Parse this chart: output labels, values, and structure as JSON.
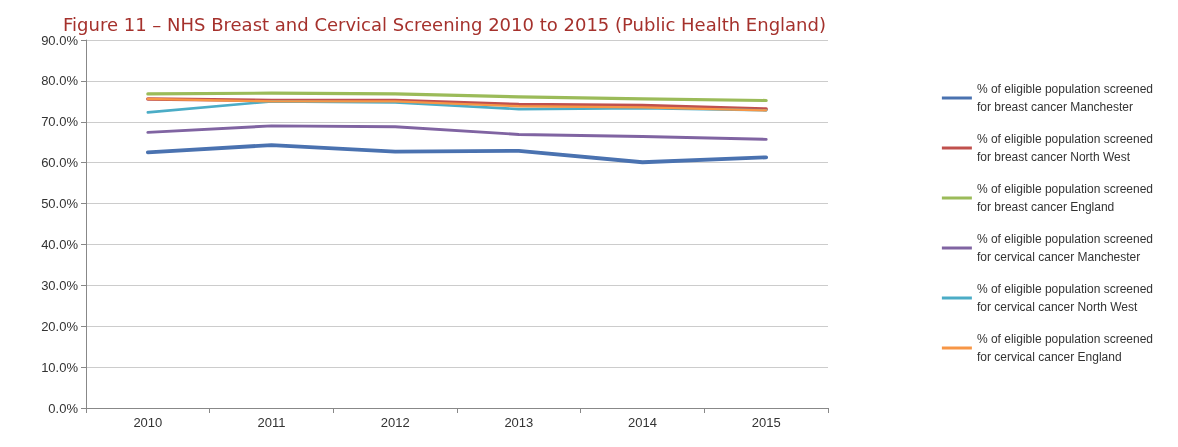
{
  "chart_data": {
    "type": "line",
    "title": "Figure 11 – NHS Breast and Cervical Screening 2010 to 2015 (Public Health England)",
    "categories": [
      "2010",
      "2011",
      "2012",
      "2013",
      "2014",
      "2015"
    ],
    "series": [
      {
        "name": "% of eligible population screened for breast cancer Manchester",
        "color": "#4a72b0",
        "values": [
          62.5,
          64.3,
          62.7,
          62.9,
          60.1,
          61.3
        ]
      },
      {
        "name": "% of eligible population screened for breast cancer North West",
        "color": "#c0504d",
        "values": [
          75.6,
          75.2,
          75.2,
          74.2,
          74.0,
          73.1
        ]
      },
      {
        "name": "% of eligible population screened for breast cancer England",
        "color": "#9bbb59",
        "values": [
          76.8,
          77.0,
          76.8,
          76.1,
          75.6,
          75.2
        ]
      },
      {
        "name": "% of eligible population screened for cervical cancer Manchester",
        "color": "#8064a2",
        "values": [
          67.4,
          69.0,
          68.8,
          66.9,
          66.4,
          65.7
        ]
      },
      {
        "name": "% of eligible population screened for cervical cancer North West",
        "color": "#4bacc6",
        "values": [
          72.3,
          75.0,
          74.7,
          73.1,
          73.3,
          72.8
        ]
      },
      {
        "name": "% of eligible population screened for cervical cancer England",
        "color": "#f79646",
        "values": [
          75.6,
          75.0,
          75.0,
          73.8,
          73.5,
          72.8
        ]
      }
    ],
    "ylim": [
      0,
      90
    ],
    "yticks": [
      {
        "value": 0,
        "label": "0.0%"
      },
      {
        "value": 10,
        "label": "10.0%"
      },
      {
        "value": 20,
        "label": "20.0%"
      },
      {
        "value": 30,
        "label": "30.0%"
      },
      {
        "value": 40,
        "label": "40.0%"
      },
      {
        "value": 50,
        "label": "50.0%"
      },
      {
        "value": 60,
        "label": "60.0%"
      },
      {
        "value": 70,
        "label": "70.0%"
      },
      {
        "value": 80,
        "label": "80.0%"
      },
      {
        "value": 90,
        "label": "90.0%"
      }
    ],
    "grid": "y",
    "legend": "right",
    "marker": "none",
    "line_style": "solid"
  }
}
